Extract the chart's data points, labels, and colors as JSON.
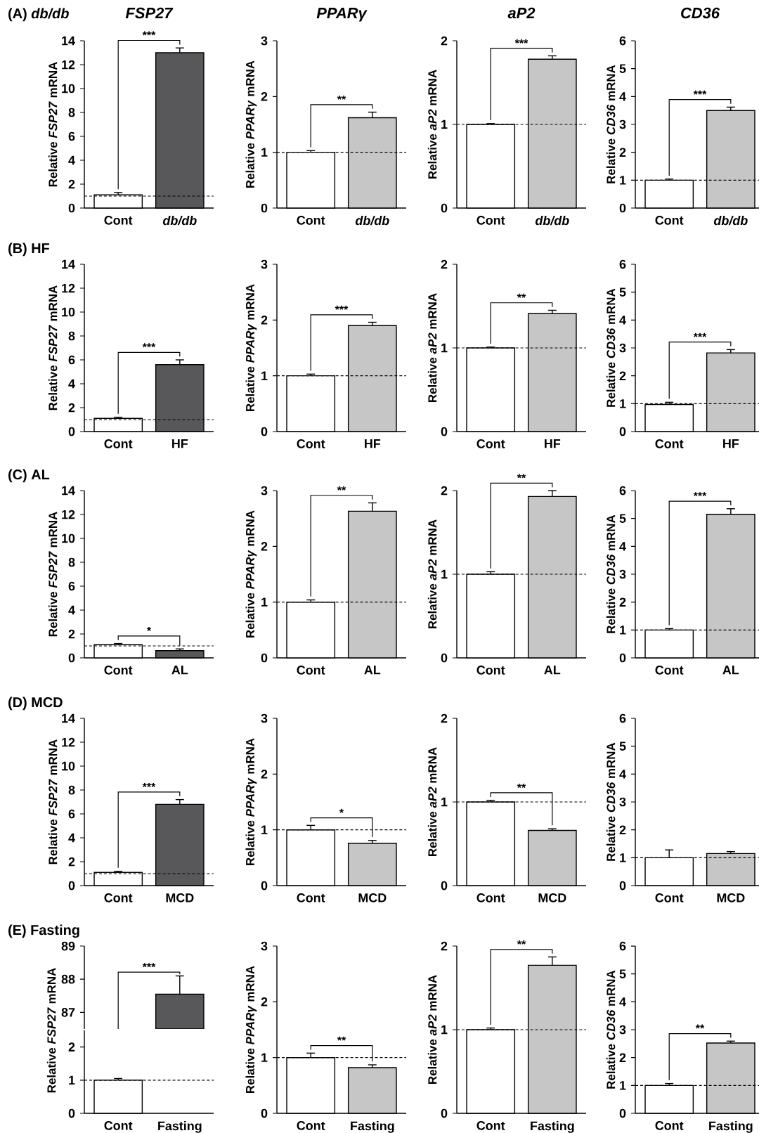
{
  "chart_data": [
    {
      "type": "bar",
      "title": "FSP27",
      "subtitle": "(A) *db/db*",
      "ylabel": "Relative *FSP27* mRNA",
      "categories": [
        "Cont",
        "*db/db*"
      ],
      "values": [
        1.1,
        13.0
      ],
      "errors": [
        [
          1.1,
          1.3
        ],
        [
          13.0,
          13.4
        ]
      ],
      "colors": [
        "#ffffff",
        "#58585a"
      ],
      "ylim": [
        0,
        14
      ],
      "yticks": [
        0,
        2,
        4,
        6,
        8,
        10,
        12,
        14
      ],
      "ref_lines": [
        {
          "axis": "y",
          "value": 1,
          "line_style": "dashed"
        }
      ],
      "annotations": [
        "***"
      ]
    },
    {
      "type": "bar",
      "title": "PPARγ",
      "ylabel": "Relative *PPARγ* mRNA",
      "categories": [
        "Cont",
        "*db/db*"
      ],
      "values": [
        1.0,
        1.62
      ],
      "errors": [
        [
          1.0,
          1.03
        ],
        [
          1.62,
          1.72
        ]
      ],
      "colors": [
        "#ffffff",
        "#c6c6c6"
      ],
      "ylim": [
        0,
        3
      ],
      "yticks": [
        0,
        1,
        2,
        3
      ],
      "ref_lines": [
        {
          "axis": "y",
          "value": 1,
          "line_style": "dashed"
        }
      ],
      "annotations": [
        "**"
      ]
    },
    {
      "type": "bar",
      "title": "aP2",
      "ylabel": "Relative *aP2* mRNA",
      "categories": [
        "Cont",
        "*db/db*"
      ],
      "values": [
        1.0,
        1.78
      ],
      "errors": [
        [
          1.0,
          1.01
        ],
        [
          1.78,
          1.82
        ]
      ],
      "colors": [
        "#ffffff",
        "#c6c6c6"
      ],
      "ylim": [
        0,
        2
      ],
      "yticks": [
        0,
        1,
        2
      ],
      "ref_lines": [
        {
          "axis": "y",
          "value": 1,
          "line_style": "dashed"
        }
      ],
      "annotations": [
        "***"
      ]
    },
    {
      "type": "bar",
      "title": "CD36",
      "ylabel": "Relative *CD36* mRNA",
      "categories": [
        "Cont",
        "*db/db*"
      ],
      "values": [
        1.0,
        3.5
      ],
      "errors": [
        [
          1.0,
          1.04
        ],
        [
          3.5,
          3.62
        ]
      ],
      "colors": [
        "#ffffff",
        "#c6c6c6"
      ],
      "ylim": [
        0,
        6
      ],
      "yticks": [
        0,
        1,
        2,
        3,
        4,
        5,
        6
      ],
      "ref_lines": [
        {
          "axis": "y",
          "value": 1,
          "line_style": "dashed"
        }
      ],
      "annotations": [
        "***"
      ]
    },
    {
      "type": "bar",
      "subtitle": "(B) HF",
      "ylabel": "Relative *FSP27* mRNA",
      "categories": [
        "Cont",
        "HF"
      ],
      "values": [
        1.1,
        5.6
      ],
      "errors": [
        [
          1.1,
          1.2
        ],
        [
          5.6,
          6.0
        ]
      ],
      "colors": [
        "#ffffff",
        "#58585a"
      ],
      "ylim": [
        0,
        14
      ],
      "yticks": [
        0,
        2,
        4,
        6,
        8,
        10,
        12,
        14
      ],
      "ref_lines": [
        {
          "axis": "y",
          "value": 1,
          "line_style": "dashed"
        }
      ],
      "annotations": [
        "***"
      ]
    },
    {
      "type": "bar",
      "ylabel": "Relative *PPARγ* mRNA",
      "categories": [
        "Cont",
        "HF"
      ],
      "values": [
        1.0,
        1.9
      ],
      "errors": [
        [
          1.0,
          1.03
        ],
        [
          1.9,
          1.96
        ]
      ],
      "colors": [
        "#ffffff",
        "#c6c6c6"
      ],
      "ylim": [
        0,
        3
      ],
      "yticks": [
        0,
        1,
        2,
        3
      ],
      "ref_lines": [
        {
          "axis": "y",
          "value": 1,
          "line_style": "dashed"
        }
      ],
      "annotations": [
        "***"
      ]
    },
    {
      "type": "bar",
      "ylabel": "Relative *aP2* mRNA",
      "categories": [
        "Cont",
        "HF"
      ],
      "values": [
        1.0,
        1.41
      ],
      "errors": [
        [
          1.0,
          1.01
        ],
        [
          1.41,
          1.45
        ]
      ],
      "colors": [
        "#ffffff",
        "#c6c6c6"
      ],
      "ylim": [
        0,
        2
      ],
      "yticks": [
        0,
        1,
        2
      ],
      "ref_lines": [
        {
          "axis": "y",
          "value": 1,
          "line_style": "dashed"
        }
      ],
      "annotations": [
        "**"
      ]
    },
    {
      "type": "bar",
      "ylabel": "Relative *CD36* mRNA",
      "categories": [
        "Cont",
        "HF"
      ],
      "values": [
        0.97,
        2.82
      ],
      "errors": [
        [
          0.97,
          1.05
        ],
        [
          2.82,
          2.94
        ]
      ],
      "colors": [
        "#ffffff",
        "#c6c6c6"
      ],
      "ylim": [
        0,
        6
      ],
      "yticks": [
        0,
        1,
        2,
        3,
        4,
        5,
        6
      ],
      "ref_lines": [
        {
          "axis": "y",
          "value": 1,
          "line_style": "dashed"
        }
      ],
      "annotations": [
        "***"
      ]
    },
    {
      "type": "bar",
      "subtitle": "(C) AL",
      "ylabel": "Relative *FSP27* mRNA",
      "categories": [
        "Cont",
        "AL"
      ],
      "values": [
        1.1,
        0.6
      ],
      "errors": [
        [
          1.1,
          1.2
        ],
        [
          0.6,
          0.75
        ]
      ],
      "colors": [
        "#ffffff",
        "#58585a"
      ],
      "ylim": [
        0,
        14
      ],
      "yticks": [
        0,
        2,
        4,
        6,
        8,
        10,
        12,
        14
      ],
      "ref_lines": [
        {
          "axis": "y",
          "value": 1,
          "line_style": "dashed"
        }
      ],
      "annotations": [
        "*"
      ]
    },
    {
      "type": "bar",
      "ylabel": "Relative *PPARγ* mRNA",
      "categories": [
        "Cont",
        "AL"
      ],
      "values": [
        1.0,
        2.63
      ],
      "errors": [
        [
          1.0,
          1.04
        ],
        [
          2.63,
          2.78
        ]
      ],
      "colors": [
        "#ffffff",
        "#c6c6c6"
      ],
      "ylim": [
        0,
        3
      ],
      "yticks": [
        0,
        1,
        2,
        3
      ],
      "ref_lines": [
        {
          "axis": "y",
          "value": 1,
          "line_style": "dashed"
        }
      ],
      "annotations": [
        "**"
      ]
    },
    {
      "type": "bar",
      "ylabel": "Relative *aP2* mRNA",
      "categories": [
        "Cont",
        "AL"
      ],
      "values": [
        1.0,
        1.93
      ],
      "errors": [
        [
          1.0,
          1.03
        ],
        [
          1.93,
          2.0
        ]
      ],
      "colors": [
        "#ffffff",
        "#c6c6c6"
      ],
      "ylim": [
        0,
        2
      ],
      "yticks": [
        0,
        1,
        2
      ],
      "ref_lines": [
        {
          "axis": "y",
          "value": 1,
          "line_style": "dashed"
        }
      ],
      "annotations": [
        "**"
      ]
    },
    {
      "type": "bar",
      "ylabel": "Relative *CD36* mRNA",
      "categories": [
        "Cont",
        "AL"
      ],
      "values": [
        1.0,
        5.15
      ],
      "errors": [
        [
          1.0,
          1.05
        ],
        [
          5.15,
          5.35
        ]
      ],
      "colors": [
        "#ffffff",
        "#c6c6c6"
      ],
      "ylim": [
        0,
        6
      ],
      "yticks": [
        0,
        1,
        2,
        3,
        4,
        5,
        6
      ],
      "ref_lines": [
        {
          "axis": "y",
          "value": 1,
          "line_style": "dashed"
        }
      ],
      "annotations": [
        "***"
      ]
    },
    {
      "type": "bar",
      "subtitle": "(D) MCD",
      "ylabel": "Relative *FSP27* mRNA",
      "categories": [
        "Cont",
        "MCD"
      ],
      "values": [
        1.1,
        6.8
      ],
      "errors": [
        [
          1.1,
          1.2
        ],
        [
          6.8,
          7.2
        ]
      ],
      "colors": [
        "#ffffff",
        "#58585a"
      ],
      "ylim": [
        0,
        14
      ],
      "yticks": [
        0,
        2,
        4,
        6,
        8,
        10,
        12,
        14
      ],
      "ref_lines": [
        {
          "axis": "y",
          "value": 1,
          "line_style": "dashed"
        }
      ],
      "annotations": [
        "***"
      ]
    },
    {
      "type": "bar",
      "ylabel": "Relative *PPARγ* mRNA",
      "categories": [
        "Cont",
        "MCD"
      ],
      "values": [
        1.0,
        0.76
      ],
      "errors": [
        [
          1.0,
          1.08
        ],
        [
          0.76,
          0.81
        ]
      ],
      "colors": [
        "#ffffff",
        "#c6c6c6"
      ],
      "ylim": [
        0,
        3
      ],
      "yticks": [
        0,
        1,
        2,
        3
      ],
      "ref_lines": [
        {
          "axis": "y",
          "value": 1,
          "line_style": "dashed"
        }
      ],
      "annotations": [
        "*"
      ]
    },
    {
      "type": "bar",
      "ylabel": "Relative *aP2* mRNA",
      "categories": [
        "Cont",
        "MCD"
      ],
      "values": [
        1.0,
        0.66
      ],
      "errors": [
        [
          1.0,
          1.02
        ],
        [
          0.66,
          0.68
        ]
      ],
      "colors": [
        "#ffffff",
        "#c6c6c6"
      ],
      "ylim": [
        0,
        2
      ],
      "yticks": [
        0,
        1,
        2
      ],
      "ref_lines": [
        {
          "axis": "y",
          "value": 1,
          "line_style": "dashed"
        }
      ],
      "annotations": [
        "**"
      ]
    },
    {
      "type": "bar",
      "ylabel": "Relative *CD36* mRNA",
      "categories": [
        "Cont",
        "MCD"
      ],
      "values": [
        1.0,
        1.15
      ],
      "errors": [
        [
          1.0,
          1.28
        ],
        [
          1.15,
          1.22
        ]
      ],
      "colors": [
        "#ffffff",
        "#c6c6c6"
      ],
      "ylim": [
        0,
        6
      ],
      "yticks": [
        0,
        1,
        2,
        3,
        4,
        5,
        6
      ],
      "ref_lines": [
        {
          "axis": "y",
          "value": 1,
          "line_style": "dashed"
        }
      ]
    },
    {
      "type": "bar",
      "subtitle": "(E) Fasting",
      "categories": [
        null,
        null
      ],
      "values": [
        null,
        87.55
      ],
      "errors": [
        null,
        [
          87.55,
          88.1
        ]
      ],
      "colors": [
        "#ffffff",
        "#58585a"
      ],
      "ylim": [
        86.5,
        89
      ],
      "yticks": [
        87,
        88,
        89
      ],
      "tick_labels": "y",
      "annotations": [
        "***"
      ]
    },
    {
      "type": "bar",
      "ylabel": "Relative *FSP27* mRNA",
      "categories": [
        "Cont",
        "Fasting"
      ],
      "values": [
        1.0,
        null
      ],
      "errors": [
        [
          1.0,
          1.05
        ],
        null
      ],
      "colors": [
        "#ffffff",
        "#58585a"
      ],
      "ylim": [
        0,
        2.5
      ],
      "yticks": [
        0,
        1,
        2
      ],
      "ref_lines": [
        {
          "axis": "y",
          "value": 1,
          "line_style": "dashed"
        }
      ]
    },
    {
      "type": "bar",
      "ylabel": "Relative *PPARγ* mRNA",
      "categories": [
        "Cont",
        "Fasting"
      ],
      "values": [
        1.0,
        0.82
      ],
      "errors": [
        [
          1.0,
          1.08
        ],
        [
          0.82,
          0.87
        ]
      ],
      "colors": [
        "#ffffff",
        "#c6c6c6"
      ],
      "ylim": [
        0,
        3
      ],
      "yticks": [
        0,
        1,
        2,
        3
      ],
      "ref_lines": [
        {
          "axis": "y",
          "value": 1,
          "line_style": "dashed"
        }
      ],
      "annotations": [
        "**"
      ]
    },
    {
      "type": "bar",
      "ylabel": "Relative *aP2* mRNA",
      "categories": [
        "Cont",
        "Fasting"
      ],
      "values": [
        1.0,
        1.77
      ],
      "errors": [
        [
          1.0,
          1.02
        ],
        [
          1.77,
          1.87
        ]
      ],
      "colors": [
        "#ffffff",
        "#c6c6c6"
      ],
      "ylim": [
        0,
        2
      ],
      "yticks": [
        0,
        1,
        2
      ],
      "ref_lines": [
        {
          "axis": "y",
          "value": 1,
          "line_style": "dashed"
        }
      ],
      "annotations": [
        "**"
      ]
    },
    {
      "type": "bar",
      "ylabel": "Relative *CD36* mRNA",
      "categories": [
        "Cont",
        "Fasting"
      ],
      "values": [
        1.0,
        2.52
      ],
      "errors": [
        [
          1.0,
          1.07
        ],
        [
          2.52,
          2.59
        ]
      ],
      "colors": [
        "#ffffff",
        "#c6c6c6"
      ],
      "ylim": [
        0,
        6
      ],
      "yticks": [
        0,
        1,
        2,
        3,
        4,
        5,
        6
      ],
      "ref_lines": [
        {
          "axis": "y",
          "value": 1,
          "line_style": "dashed"
        }
      ],
      "annotations": [
        "**"
      ]
    }
  ]
}
